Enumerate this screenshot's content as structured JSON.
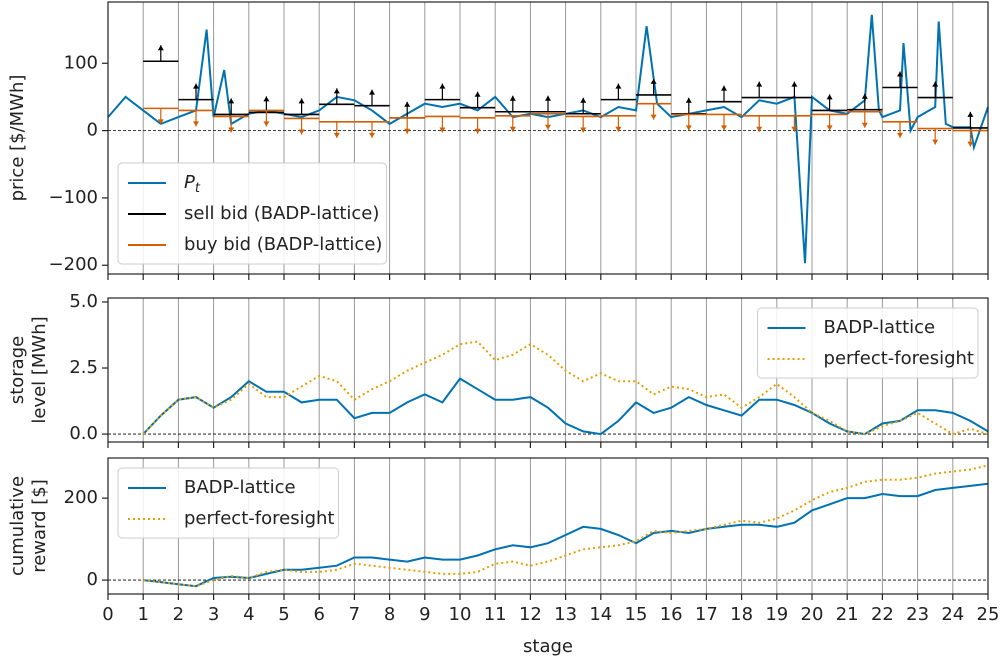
{
  "chart_data": [
    {
      "type": "line",
      "y_label": [
        "price [$/MWh]"
      ],
      "xlim": [
        0,
        25
      ],
      "xticks": [
        0,
        1,
        2,
        3,
        4,
        5,
        6,
        7,
        8,
        9,
        10,
        11,
        12,
        13,
        14,
        15,
        16,
        17,
        18,
        19,
        20,
        21,
        22,
        23,
        24,
        25
      ],
      "ylim": [
        -213,
        191
      ],
      "yticks": [
        {
          "value": -200,
          "label": "−200"
        },
        {
          "value": -100,
          "label": "−100"
        },
        0,
        100
      ],
      "hline": 0,
      "grid": true,
      "legend": "lower left",
      "x": [
        0,
        0.5,
        1,
        1.5,
        2,
        2.5,
        2.8,
        3,
        3.3,
        3.5,
        4,
        4.5,
        5,
        5.5,
        6,
        6.5,
        7,
        7.5,
        8,
        8.5,
        9,
        9.5,
        10,
        10.5,
        11,
        11.5,
        12,
        12.5,
        13,
        13.5,
        14,
        14.5,
        15,
        15.3,
        15.6,
        16,
        16.5,
        17,
        17.5,
        18,
        18.5,
        19,
        19.5,
        19.8,
        20,
        20.5,
        21,
        21.5,
        21.7,
        21.9,
        22,
        22.5,
        22.6,
        22.8,
        23,
        23.5,
        23.6,
        23.8,
        24,
        24.5,
        24.6,
        25
      ],
      "series": [
        {
          "name": "P_t",
          "color": "#0072b2",
          "values": [
            20,
            50,
            30,
            10,
            20,
            30,
            150,
            20,
            90,
            10,
            25,
            30,
            25,
            20,
            30,
            50,
            45,
            30,
            10,
            25,
            40,
            35,
            40,
            30,
            50,
            20,
            25,
            20,
            25,
            30,
            20,
            35,
            30,
            155,
            40,
            20,
            25,
            30,
            35,
            20,
            45,
            40,
            50,
            -197,
            50,
            30,
            25,
            45,
            172,
            30,
            20,
            30,
            130,
            0,
            20,
            35,
            162,
            10,
            5,
            5,
            -25,
            35
          ]
        }
      ],
      "bids": [
        {
          "name": "sell bid (BADP-lattice)",
          "color": "#000000",
          "arrow": "up",
          "x": [
            1,
            2,
            3,
            4,
            5,
            6,
            7,
            8,
            9,
            10,
            11,
            12,
            13,
            14,
            15,
            16,
            17,
            18,
            19,
            20,
            21,
            22,
            23,
            24
          ],
          "values": [
            103,
            46,
            24,
            27,
            24,
            39,
            37,
            19,
            46,
            34,
            28,
            28,
            25,
            46,
            53,
            25,
            43,
            49,
            49,
            30,
            31,
            64,
            49,
            4
          ]
        },
        {
          "name": "buy bid (BADP-lattice)",
          "color": "#d55e00",
          "arrow": "down",
          "x": [
            1,
            2,
            3,
            4,
            5,
            6,
            7,
            8,
            9,
            10,
            11,
            12,
            13,
            14,
            15,
            16,
            17,
            18,
            19,
            20,
            21,
            22,
            23,
            24
          ],
          "values": [
            33,
            30,
            21,
            30,
            18,
            13,
            13,
            19,
            21,
            19,
            22,
            25,
            21,
            22,
            40,
            24,
            24,
            22,
            22,
            24,
            28,
            13,
            3,
            0
          ]
        }
      ]
    },
    {
      "type": "line",
      "y_label": [
        "storage",
        "level [MWh]"
      ],
      "xlim": [
        0,
        25
      ],
      "xticks": [
        0,
        1,
        2,
        3,
        4,
        5,
        6,
        7,
        8,
        9,
        10,
        11,
        12,
        13,
        14,
        15,
        16,
        17,
        18,
        19,
        20,
        21,
        22,
        23,
        24,
        25
      ],
      "ylim": [
        -0.3,
        5.15
      ],
      "yticks": [
        {
          "value": 0,
          "label": "0.0"
        },
        {
          "value": 2.5,
          "label": "2.5"
        },
        {
          "value": 5,
          "label": "5.0"
        }
      ],
      "hline": 0,
      "grid": true,
      "legend": "upper right",
      "x": [
        1,
        1.5,
        2,
        2.5,
        3,
        3.5,
        4,
        4.5,
        5,
        5.5,
        6,
        6.5,
        7,
        7.5,
        8,
        8.5,
        9,
        9.5,
        10,
        10.5,
        11,
        11.5,
        12,
        12.5,
        13,
        13.5,
        14,
        14.5,
        15,
        15.5,
        16,
        16.5,
        17,
        17.5,
        18,
        18.5,
        19,
        19.5,
        20,
        20.5,
        21,
        21.5,
        22,
        22.5,
        23,
        23.5,
        24,
        24.5,
        25
      ],
      "series": [
        {
          "name": "BADP-lattice",
          "color": "#0072b2",
          "linestyle": "solid",
          "values": [
            0,
            0.7,
            1.3,
            1.4,
            1.0,
            1.4,
            2.0,
            1.6,
            1.6,
            1.2,
            1.3,
            1.3,
            0.6,
            0.8,
            0.8,
            1.2,
            1.5,
            1.2,
            2.1,
            1.7,
            1.3,
            1.3,
            1.4,
            1.0,
            0.4,
            0.1,
            0.0,
            0.5,
            1.2,
            0.8,
            1.0,
            1.4,
            1.1,
            0.9,
            0.7,
            1.3,
            1.3,
            1.1,
            0.8,
            0.4,
            0.1,
            0.0,
            0.4,
            0.5,
            0.9,
            0.9,
            0.8,
            0.5,
            0.1
          ]
        },
        {
          "name": "perfect-foresight",
          "color": "#e69f00",
          "linestyle": "dotted",
          "values": [
            0,
            0.7,
            1.3,
            1.4,
            1.0,
            1.3,
            1.9,
            1.4,
            1.4,
            1.8,
            2.2,
            2.0,
            1.3,
            1.7,
            2.0,
            2.4,
            2.7,
            3.0,
            3.4,
            3.5,
            2.8,
            3.0,
            3.4,
            3.0,
            2.4,
            2.0,
            2.3,
            2.0,
            2.0,
            1.5,
            1.8,
            1.7,
            1.4,
            1.5,
            1.0,
            1.4,
            1.9,
            1.4,
            0.8,
            0.5,
            0.1,
            0.0,
            0.3,
            0.5,
            0.8,
            0.4,
            0.0,
            0.2,
            0.0
          ]
        }
      ]
    },
    {
      "type": "line",
      "y_label": [
        "cumulative",
        "reward [$]"
      ],
      "x_label": "stage",
      "xlim": [
        0,
        25
      ],
      "xticks": [
        0,
        1,
        2,
        3,
        4,
        5,
        6,
        7,
        8,
        9,
        10,
        11,
        12,
        13,
        14,
        15,
        16,
        17,
        18,
        19,
        20,
        21,
        22,
        23,
        24,
        25
      ],
      "ylim": [
        -34,
        298
      ],
      "yticks": [
        0,
        200
      ],
      "hline": 0,
      "grid": true,
      "legend": "upper left",
      "x": [
        1,
        1.5,
        2,
        2.5,
        3,
        3.5,
        4,
        4.5,
        5,
        5.5,
        6,
        6.5,
        7,
        7.5,
        8,
        8.5,
        9,
        9.5,
        10,
        10.5,
        11,
        11.5,
        12,
        12.5,
        13,
        13.5,
        14,
        14.5,
        15,
        15.5,
        16,
        16.5,
        17,
        17.5,
        18,
        18.5,
        19,
        19.5,
        20,
        20.5,
        21,
        21.5,
        22,
        22.5,
        23,
        23.5,
        24,
        24.5,
        25
      ],
      "series": [
        {
          "name": "BADP-lattice",
          "color": "#0072b2",
          "linestyle": "solid",
          "values": [
            0,
            -5,
            -10,
            -15,
            5,
            8,
            5,
            15,
            25,
            25,
            30,
            35,
            55,
            55,
            50,
            45,
            55,
            50,
            50,
            60,
            75,
            85,
            80,
            90,
            110,
            130,
            125,
            110,
            90,
            115,
            120,
            115,
            125,
            130,
            135,
            135,
            130,
            140,
            170,
            185,
            200,
            200,
            210,
            205,
            205,
            220,
            225,
            230,
            235
          ]
        },
        {
          "name": "perfect-foresight",
          "color": "#e69f00",
          "linestyle": "dotted",
          "values": [
            0,
            -5,
            -10,
            -15,
            0,
            10,
            5,
            20,
            25,
            20,
            20,
            25,
            40,
            35,
            30,
            25,
            20,
            15,
            15,
            20,
            40,
            45,
            35,
            45,
            60,
            75,
            80,
            85,
            95,
            120,
            115,
            120,
            125,
            135,
            145,
            140,
            150,
            170,
            195,
            215,
            225,
            240,
            245,
            245,
            250,
            260,
            265,
            270,
            280
          ]
        }
      ]
    }
  ]
}
